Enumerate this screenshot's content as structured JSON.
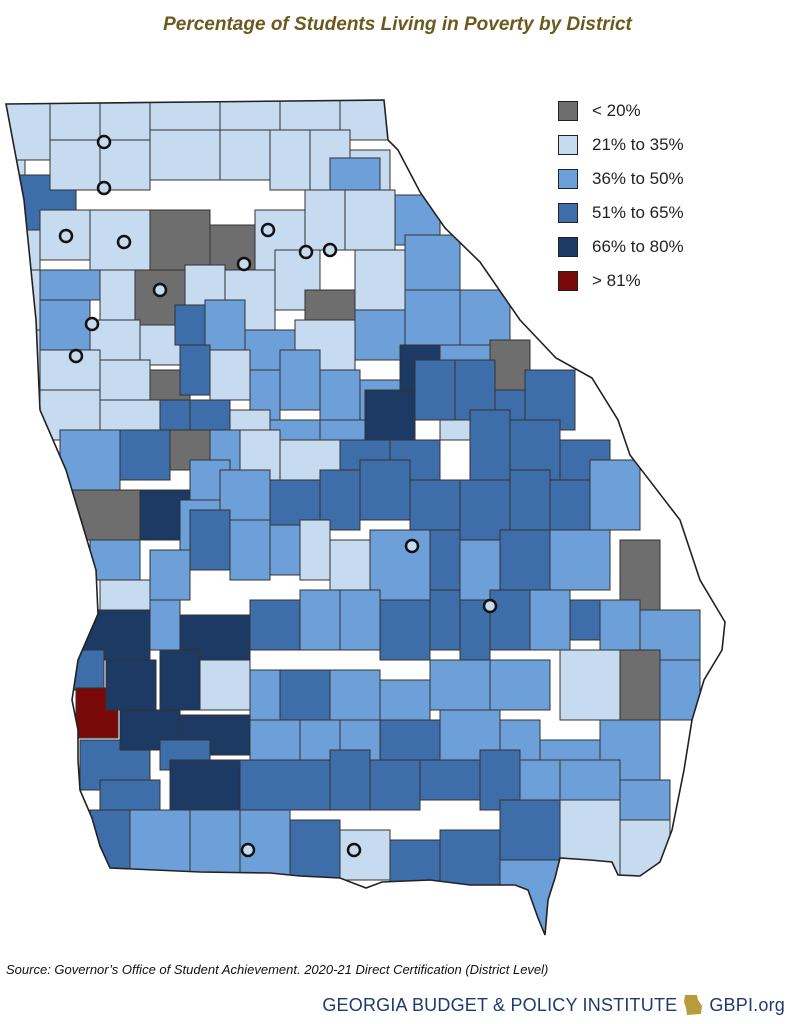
{
  "title": "Percentage of Students Living in Poverty by District",
  "legend": [
    {
      "label": "< 20%",
      "color": "#6e6e6e"
    },
    {
      "label": "21% to 35%",
      "color": "#c6daf0"
    },
    {
      "label": "36% to 50%",
      "color": "#6d9fd8"
    },
    {
      "label": "51% to 65%",
      "color": "#3d6ea9"
    },
    {
      "label": "66% to 80%",
      "color": "#1c3a63"
    },
    {
      "label": "> 81%",
      "color": "#7a0a0a"
    }
  ],
  "source": "Source: Governor’s Office of Student Achievement. 2020-21 Direct Certification (District Level)",
  "footer": {
    "organization": "GEORGIA BUDGET & POLICY INSTITUTE",
    "site": "GBPI.org",
    "logo_color": "#b89b3a"
  }
}
